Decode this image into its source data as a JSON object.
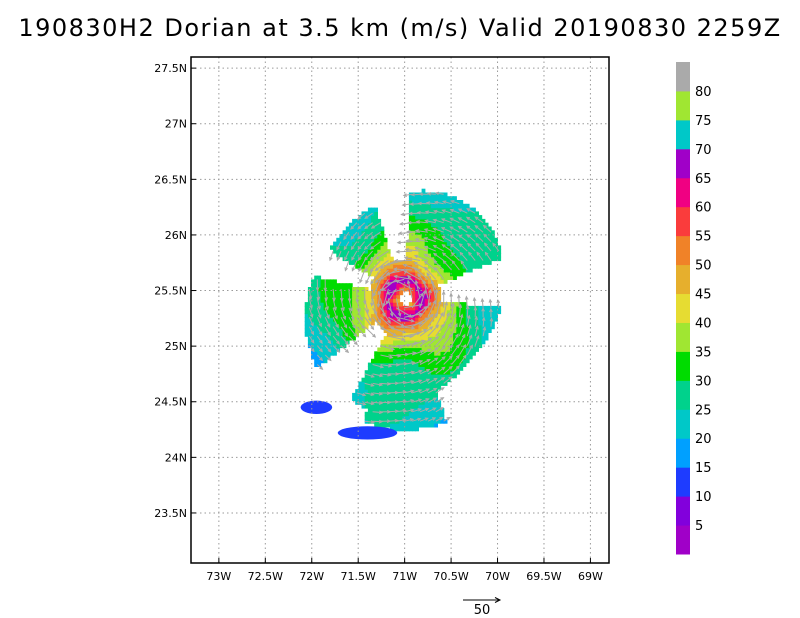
{
  "chart_data": {
    "type": "heatmap",
    "title": "190830H2 Dorian at 3.5 km (m/s) Valid 20190830 2259Z",
    "xlim": [
      -73.3,
      -68.8
    ],
    "ylim": [
      23.05,
      27.6
    ],
    "x_ticks": [
      {
        "value": -73.0,
        "label": "73W"
      },
      {
        "value": -72.5,
        "label": "72.5W"
      },
      {
        "value": -72.0,
        "label": "72W"
      },
      {
        "value": -71.5,
        "label": "71.5W"
      },
      {
        "value": -71.0,
        "label": "71W"
      },
      {
        "value": -70.5,
        "label": "70.5W"
      },
      {
        "value": -70.0,
        "label": "70W"
      },
      {
        "value": -69.5,
        "label": "69.5W"
      },
      {
        "value": -69.0,
        "label": "69W"
      }
    ],
    "y_ticks": [
      {
        "value": 23.5,
        "label": "23.5N"
      },
      {
        "value": 24.0,
        "label": "24N"
      },
      {
        "value": 24.5,
        "label": "24.5N"
      },
      {
        "value": 25.0,
        "label": "25N"
      },
      {
        "value": 25.5,
        "label": "25.5N"
      },
      {
        "value": 26.0,
        "label": "26N"
      },
      {
        "value": 26.5,
        "label": "26.5N"
      },
      {
        "value": 27.0,
        "label": "27N"
      },
      {
        "value": 27.5,
        "label": "27.5N"
      }
    ],
    "grid": true,
    "storm_center": {
      "lon": -71.0,
      "lat": 25.43
    },
    "max_wind": 70,
    "colorbar": {
      "position": "right",
      "levels": [
        {
          "label": "5",
          "color": "#a000c8"
        },
        {
          "label": "10",
          "color": "#8200dc"
        },
        {
          "label": "15",
          "color": "#1e3cff"
        },
        {
          "label": "20",
          "color": "#00a0ff"
        },
        {
          "label": "25",
          "color": "#00c8c8"
        },
        {
          "label": "30",
          "color": "#00d28c"
        },
        {
          "label": "35",
          "color": "#00dc00"
        },
        {
          "label": "40",
          "color": "#a0e632"
        },
        {
          "label": "45",
          "color": "#e6dc32"
        },
        {
          "label": "50",
          "color": "#e6af2d"
        },
        {
          "label": "55",
          "color": "#f08228"
        },
        {
          "label": "60",
          "color": "#fa3c3c"
        },
        {
          "label": "65",
          "color": "#f00082"
        },
        {
          "label": "70",
          "color": "#a000c8"
        },
        {
          "label": "75",
          "color": "#00c8c8"
        },
        {
          "label": "80",
          "color": "#a0e632"
        },
        {
          "label": "",
          "color": "#aaaaaa"
        }
      ]
    },
    "vector_reference": {
      "label": "50",
      "value": 50
    },
    "vector_color": "#a8a8a8"
  }
}
